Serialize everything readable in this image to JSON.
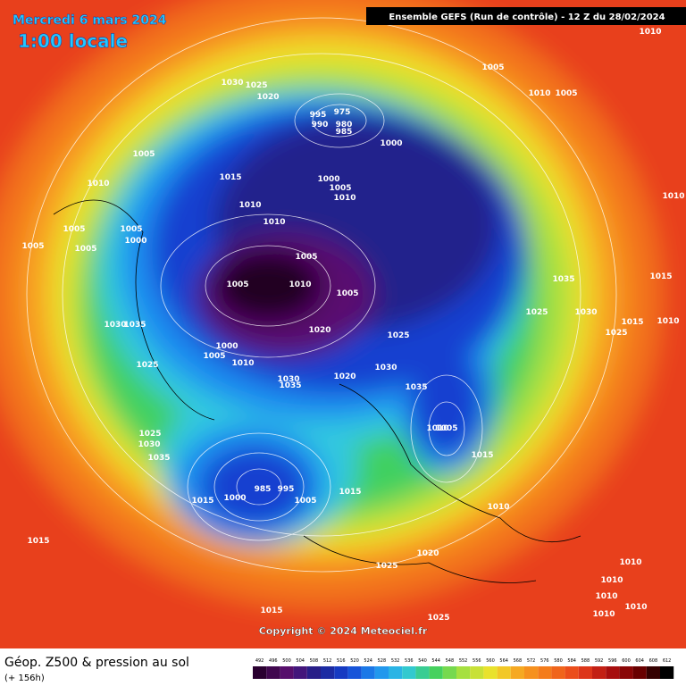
{
  "header": {
    "date": "Mercredi 6 mars 2024",
    "time": "1:00 locale",
    "run": "Ensemble GEFS  (Run de contrôle)  -  12 Z du 28/02/2024"
  },
  "footer": {
    "title": "Géop. Z500 & pression au sol",
    "subtitle": "(+ 156h)"
  },
  "copyright": "Copyright © 2024 Meteociel.fr",
  "legend": {
    "values": [
      492,
      496,
      500,
      504,
      508,
      512,
      516,
      520,
      524,
      528,
      532,
      536,
      540,
      544,
      548,
      552,
      556,
      560,
      564,
      568,
      572,
      576,
      580,
      584,
      588,
      592,
      596,
      600,
      604,
      608,
      612
    ]
  },
  "isobar_labels": [
    "1010",
    "1005",
    "1010",
    "1005",
    "1030",
    "1025",
    "1020",
    "995",
    "975",
    "990",
    "980",
    "985",
    "1000",
    "1005",
    "1010",
    "1015",
    "1000",
    "1005",
    "1010",
    "1010",
    "1010",
    "1005",
    "1005",
    "1000",
    "1005",
    "1005",
    "1010",
    "1005",
    "1005",
    "1010",
    "1005",
    "1035",
    "1015",
    "1025",
    "1030",
    "1015",
    "1010",
    "1025",
    "1035",
    "1030",
    "1020",
    "1025",
    "1000",
    "1005",
    "1010",
    "1025",
    "1030",
    "1020",
    "1030",
    "1035",
    "1035",
    "1010",
    "1005",
    "1025",
    "1030",
    "1035",
    "1015",
    "985",
    "995",
    "1015",
    "1000",
    "1005",
    "1015",
    "1010",
    "1015",
    "1020",
    "1025",
    "1010",
    "1010",
    "1010",
    "1015",
    "1025",
    "1010",
    "1010"
  ]
}
